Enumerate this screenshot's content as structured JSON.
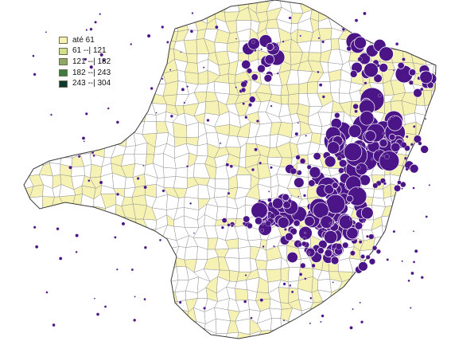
{
  "legend": {
    "items": [
      {
        "label": "até 61",
        "color": "#f6f2b4"
      },
      {
        "label": "61 --| 121",
        "color": "#d4df8a"
      },
      {
        "label": "121 --| 182",
        "color": "#8ea766"
      },
      {
        "label": "182 --| 243",
        "color": "#3f7a44"
      },
      {
        "label": "243 --| 304",
        "color": "#0b3a2c"
      }
    ]
  },
  "colors": {
    "fill_low": "#f6f2b4",
    "fill_none": "#ffffff",
    "boundary": "#8c8c8c",
    "outline": "#3b3b3b",
    "bubble": "#4b1587",
    "bubble_edge": "#ffffff"
  }
}
